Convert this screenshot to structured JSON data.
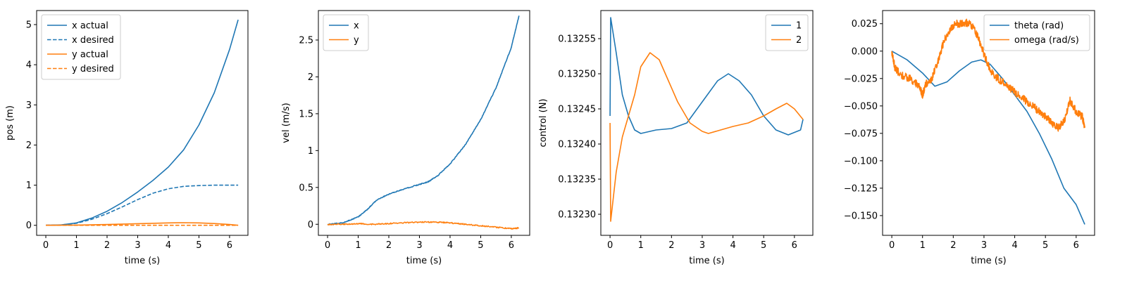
{
  "colors": {
    "blue": "#1f77b4",
    "orange": "#ff7f0e"
  },
  "chart_data": [
    {
      "type": "line",
      "xlabel": "time (s)",
      "ylabel": "pos (m)",
      "xlim": [
        -0.3,
        6.6
      ],
      "ylim": [
        -0.25,
        5.35
      ],
      "xticks": [
        0,
        1,
        2,
        3,
        4,
        5,
        6
      ],
      "yticks": [
        0,
        1,
        2,
        3,
        4,
        5
      ],
      "legend": "upper left",
      "series": [
        {
          "name": "x actual",
          "color": "blue",
          "dash": false,
          "x": [
            0,
            0.5,
            1,
            1.5,
            2,
            2.5,
            3,
            3.5,
            4,
            4.5,
            5,
            5.5,
            6,
            6.28
          ],
          "y": [
            0,
            0.01,
            0.06,
            0.18,
            0.35,
            0.57,
            0.83,
            1.12,
            1.45,
            1.88,
            2.5,
            3.3,
            4.38,
            5.12
          ]
        },
        {
          "name": "x desired",
          "color": "blue",
          "dash": true,
          "x": [
            0,
            0.5,
            1,
            1.5,
            2,
            2.5,
            3,
            3.5,
            4,
            4.5,
            5,
            5.5,
            6,
            6.28
          ],
          "y": [
            0,
            0.01,
            0.05,
            0.15,
            0.29,
            0.46,
            0.64,
            0.8,
            0.91,
            0.97,
            0.99,
            1.0,
            1.0,
            1.0
          ]
        },
        {
          "name": "y actual",
          "color": "orange",
          "dash": false,
          "x": [
            0,
            1,
            2,
            3,
            4,
            4.5,
            5,
            5.5,
            6,
            6.28
          ],
          "y": [
            0,
            0.005,
            0.02,
            0.04,
            0.06,
            0.065,
            0.06,
            0.045,
            0.02,
            0.0
          ]
        },
        {
          "name": "y desired",
          "color": "orange",
          "dash": true,
          "x": [
            0,
            6.28
          ],
          "y": [
            0,
            0
          ]
        }
      ]
    },
    {
      "type": "line",
      "xlabel": "time (s)",
      "ylabel": "vel (m/s)",
      "xlim": [
        -0.3,
        6.6
      ],
      "ylim": [
        -0.15,
        2.9
      ],
      "xticks": [
        0,
        1,
        2,
        3,
        4,
        5,
        6
      ],
      "yticks": [
        0.0,
        0.5,
        1.0,
        1.5,
        2.0,
        2.5
      ],
      "legend": "upper left",
      "series": [
        {
          "name": "x",
          "color": "blue",
          "dash": false,
          "noise": 0.006,
          "x": [
            0,
            0.5,
            1,
            1.3,
            1.6,
            2,
            2.5,
            3,
            3.3,
            3.6,
            4,
            4.5,
            5,
            5.5,
            6,
            6.25
          ],
          "y": [
            0,
            0.02,
            0.1,
            0.2,
            0.33,
            0.41,
            0.48,
            0.54,
            0.58,
            0.66,
            0.82,
            1.08,
            1.42,
            1.85,
            2.4,
            2.83
          ]
        },
        {
          "name": "y",
          "color": "orange",
          "dash": false,
          "noise": 0.008,
          "x": [
            0,
            0.5,
            1,
            1.5,
            2,
            2.5,
            3,
            3.5,
            4,
            4.5,
            5,
            5.5,
            6,
            6.25
          ],
          "y": [
            0,
            0.0,
            0.01,
            0.0,
            0.01,
            0.02,
            0.03,
            0.03,
            0.02,
            0.0,
            -0.02,
            -0.04,
            -0.06,
            -0.05
          ]
        }
      ]
    },
    {
      "type": "line",
      "xlabel": "time (s)",
      "ylabel": "control (N)",
      "xlim": [
        -0.3,
        6.6
      ],
      "ylim": [
        0.13227,
        0.13259
      ],
      "xticks": [
        0,
        1,
        2,
        3,
        4,
        5,
        6
      ],
      "yticks": [
        0.1323,
        0.13235,
        0.1324,
        0.13245,
        0.1325,
        0.13255
      ],
      "ytick_labels": [
        "0.13230",
        "0.13235",
        "0.13240",
        "0.13245",
        "0.13250",
        "0.13255"
      ],
      "legend": "upper right",
      "series": [
        {
          "name": "1",
          "color": "blue",
          "dash": false,
          "x": [
            0,
            0.02,
            0.2,
            0.4,
            0.6,
            0.8,
            1.0,
            1.5,
            2.0,
            2.5,
            3.0,
            3.5,
            3.85,
            4.2,
            4.6,
            5.0,
            5.4,
            5.8,
            6.2,
            6.28
          ],
          "y": [
            0.13244,
            0.13258,
            0.13253,
            0.13247,
            0.13244,
            0.13242,
            0.132415,
            0.13242,
            0.132422,
            0.13243,
            0.13246,
            0.13249,
            0.1325,
            0.13249,
            0.13247,
            0.13244,
            0.13242,
            0.132413,
            0.13242,
            0.132435
          ]
        },
        {
          "name": "2",
          "color": "orange",
          "dash": false,
          "x": [
            0,
            0.02,
            0.2,
            0.4,
            0.6,
            0.8,
            1.0,
            1.3,
            1.6,
            1.9,
            2.2,
            2.6,
            3.0,
            3.2,
            3.6,
            4.0,
            4.5,
            5.0,
            5.4,
            5.75,
            6.0,
            6.28
          ],
          "y": [
            0.13243,
            0.13229,
            0.13236,
            0.13241,
            0.13244,
            0.13247,
            0.13251,
            0.13253,
            0.13252,
            0.13249,
            0.13246,
            0.13243,
            0.132418,
            0.132415,
            0.13242,
            0.132425,
            0.13243,
            0.13244,
            0.13245,
            0.132458,
            0.13245,
            0.132435
          ]
        }
      ]
    },
    {
      "type": "line",
      "xlabel": "time (s)",
      "ylabel": "",
      "xlim": [
        -0.3,
        6.6
      ],
      "ylim": [
        -0.168,
        0.037
      ],
      "xticks": [
        0,
        1,
        2,
        3,
        4,
        5,
        6
      ],
      "yticks": [
        -0.15,
        -0.125,
        -0.1,
        -0.075,
        -0.05,
        -0.025,
        0.0,
        0.025
      ],
      "ytick_labels": [
        "−0.150",
        "−0.125",
        "−0.100",
        "−0.075",
        "−0.050",
        "−0.025",
        "0.000",
        "0.025"
      ],
      "legend": "upper right",
      "series": [
        {
          "name": "theta (rad)",
          "color": "blue",
          "dash": false,
          "x": [
            0,
            0.5,
            1.0,
            1.4,
            1.8,
            2.2,
            2.6,
            2.9,
            3.2,
            3.6,
            4.0,
            4.4,
            4.8,
            5.2,
            5.6,
            6.0,
            6.28
          ],
          "y": [
            0,
            -0.008,
            -0.02,
            -0.032,
            -0.028,
            -0.018,
            -0.01,
            -0.008,
            -0.012,
            -0.025,
            -0.04,
            -0.055,
            -0.075,
            -0.098,
            -0.125,
            -0.14,
            -0.158
          ]
        },
        {
          "name": "omega (rad/s)",
          "color": "orange",
          "dash": false,
          "noise": 0.0035,
          "x": [
            0,
            0.1,
            0.3,
            0.6,
            0.9,
            1.0,
            1.1,
            1.3,
            1.5,
            1.7,
            1.9,
            2.1,
            2.3,
            2.5,
            2.7,
            2.9,
            3.1,
            3.3,
            3.6,
            3.9,
            4.2,
            4.5,
            4.8,
            5.0,
            5.2,
            5.4,
            5.6,
            5.8,
            6.0,
            6.2,
            6.28
          ],
          "y": [
            0,
            -0.015,
            -0.022,
            -0.025,
            -0.032,
            -0.04,
            -0.03,
            -0.025,
            -0.01,
            0.01,
            0.02,
            0.025,
            0.025,
            0.026,
            0.02,
            0.005,
            -0.01,
            -0.022,
            -0.028,
            -0.035,
            -0.042,
            -0.048,
            -0.055,
            -0.06,
            -0.065,
            -0.07,
            -0.065,
            -0.045,
            -0.055,
            -0.06,
            -0.07
          ]
        }
      ]
    }
  ]
}
